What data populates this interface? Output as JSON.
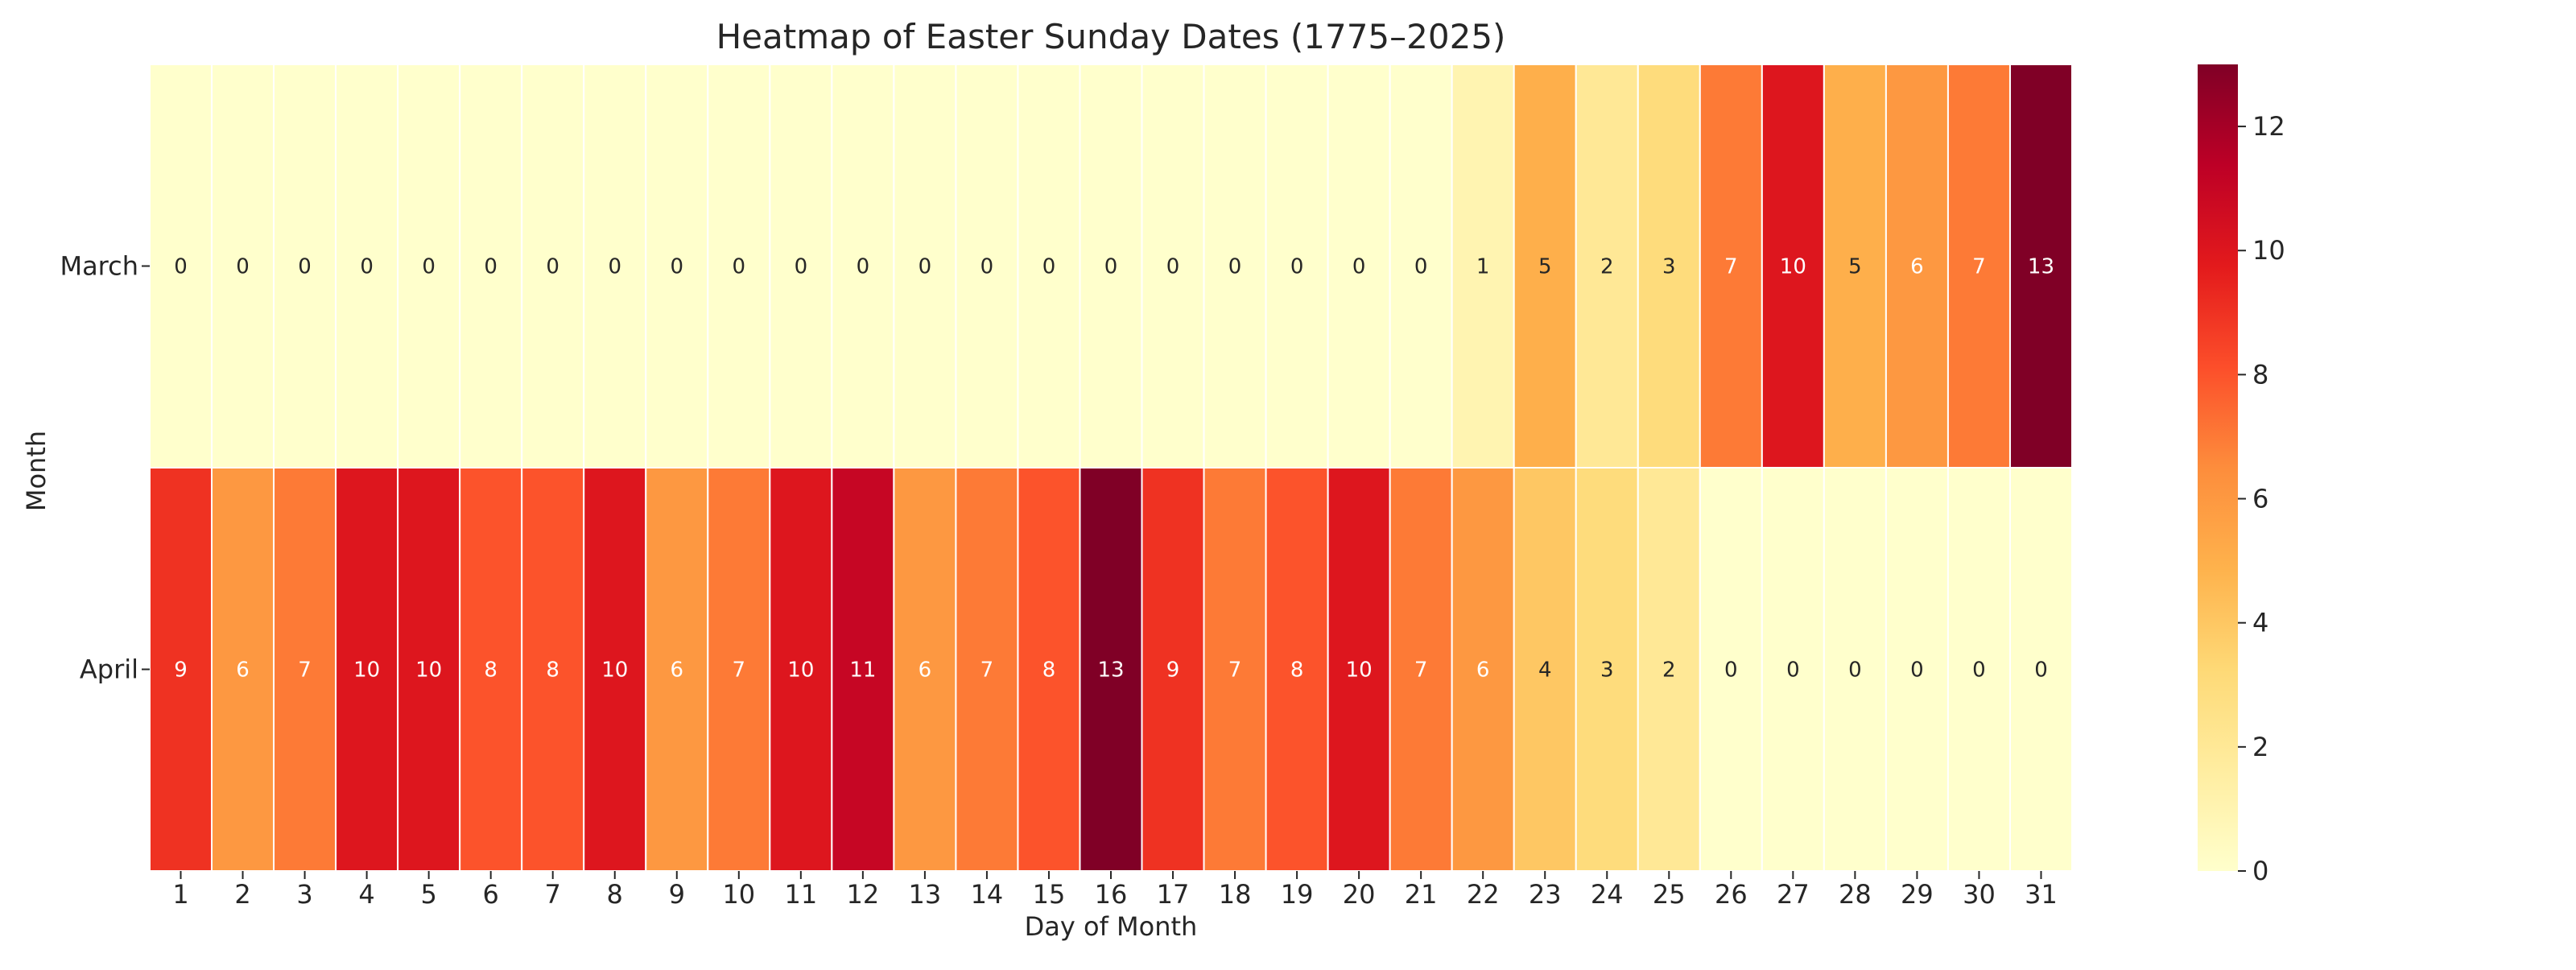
{
  "chart_data": {
    "type": "heatmap",
    "title": "Heatmap of Easter Sunday Dates (1775–2025)",
    "xlabel": "Day of Month",
    "ylabel": "Month",
    "x_categories": [
      "1",
      "2",
      "3",
      "4",
      "5",
      "6",
      "7",
      "8",
      "9",
      "10",
      "11",
      "12",
      "13",
      "14",
      "15",
      "16",
      "17",
      "18",
      "19",
      "20",
      "21",
      "22",
      "23",
      "24",
      "25",
      "26",
      "27",
      "28",
      "29",
      "30",
      "31"
    ],
    "y_categories": [
      "March",
      "April"
    ],
    "values": [
      [
        0,
        0,
        0,
        0,
        0,
        0,
        0,
        0,
        0,
        0,
        0,
        0,
        0,
        0,
        0,
        0,
        0,
        0,
        0,
        0,
        0,
        1,
        5,
        2,
        3,
        7,
        10,
        5,
        6,
        7,
        13
      ],
      [
        9,
        6,
        7,
        10,
        10,
        8,
        8,
        10,
        6,
        7,
        10,
        11,
        6,
        7,
        8,
        13,
        9,
        7,
        8,
        10,
        7,
        6,
        4,
        3,
        2,
        0,
        0,
        0,
        0,
        0,
        0
      ]
    ],
    "colorbar": {
      "range": [
        0,
        13
      ],
      "ticks": [
        0,
        2,
        4,
        6,
        8,
        10,
        12
      ],
      "colormap": "YlOrRd",
      "colormap_stops": [
        "#ffffcc",
        "#ffeda0",
        "#fed976",
        "#feb24c",
        "#fd8d3c",
        "#fc4e2a",
        "#e31a1c",
        "#bd0026",
        "#800026"
      ]
    },
    "grid": false
  }
}
